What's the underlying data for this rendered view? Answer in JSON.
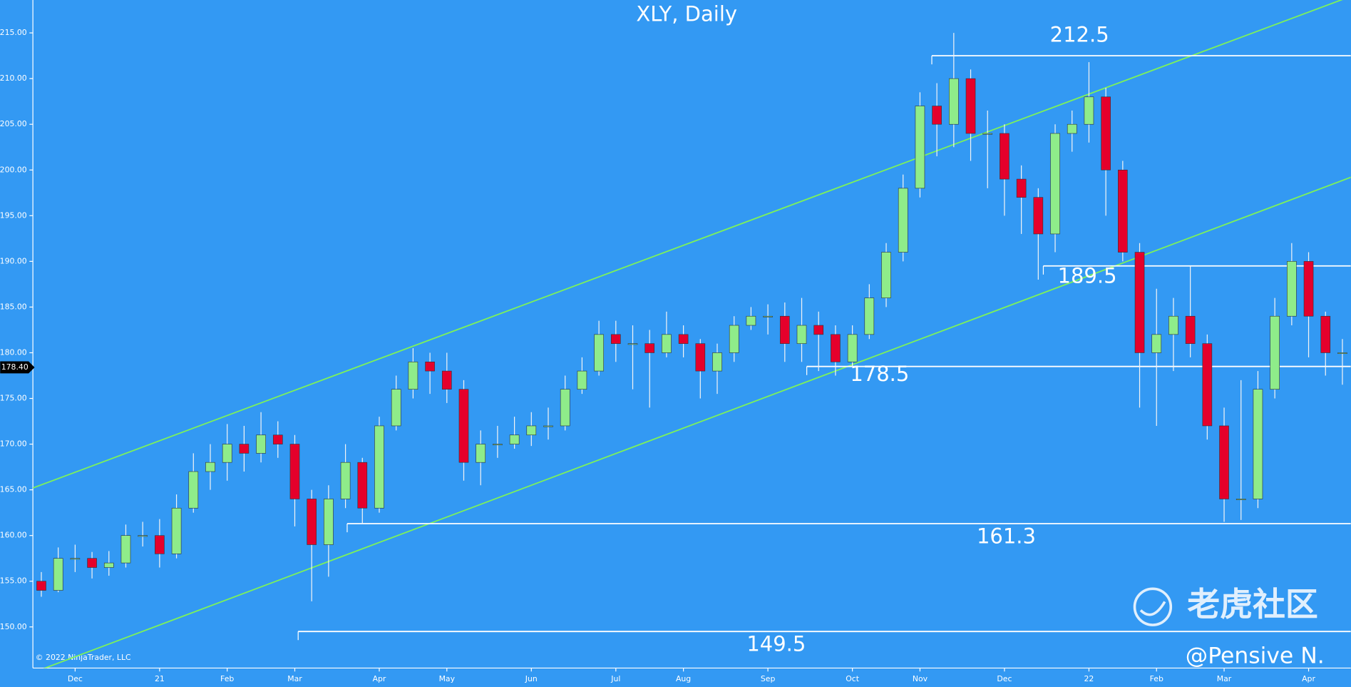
{
  "chart_data": {
    "type": "candlestick",
    "title": "XLY, Daily",
    "categories": [
      null,
      null,
      "Dec",
      null,
      null,
      null,
      null,
      "21",
      null,
      null,
      null,
      "Feb",
      null,
      null,
      null,
      "Mar",
      null,
      null,
      null,
      null,
      "Apr",
      null,
      null,
      null,
      "May",
      null,
      null,
      null,
      null,
      "Jun",
      null,
      null,
      null,
      null,
      "Jul",
      null,
      null,
      null,
      "Aug",
      null,
      null,
      null,
      null,
      "Sep",
      null,
      null,
      null,
      null,
      "Oct",
      null,
      null,
      null,
      "Nov",
      null,
      null,
      null,
      null,
      "Dec",
      null,
      null,
      null,
      null,
      "22",
      null,
      null,
      null,
      "Feb",
      null,
      null,
      null,
      "Mar",
      null,
      null,
      null,
      null,
      "Apr",
      null,
      null
    ],
    "open": [
      155,
      154,
      157.5,
      157.5,
      156.5,
      157,
      160,
      160,
      158,
      163,
      167,
      168,
      170,
      169,
      171,
      170,
      164,
      159,
      164,
      168,
      163,
      172,
      176,
      179,
      178,
      176,
      168,
      170,
      170,
      171,
      172,
      172,
      176,
      178,
      182,
      181,
      181,
      180,
      182,
      181,
      178,
      180,
      183,
      184,
      184,
      181,
      183,
      182,
      179,
      182,
      186,
      191,
      198,
      207,
      205,
      210,
      204,
      204,
      199,
      197,
      193,
      204,
      205,
      208,
      200,
      191,
      180,
      182,
      184,
      181,
      172,
      164,
      164,
      176,
      184,
      190,
      184,
      180
    ],
    "high": [
      156,
      158.7,
      159,
      158.2,
      158.3,
      161.2,
      161.5,
      161.8,
      164.5,
      169,
      170,
      172.2,
      172,
      173.5,
      172.5,
      171,
      165,
      165.5,
      170,
      168.5,
      173,
      177.5,
      180.5,
      180,
      180,
      177,
      171.5,
      172,
      173,
      173.5,
      174,
      177.5,
      179.5,
      183.5,
      183.5,
      183,
      182.5,
      184.5,
      183,
      181.5,
      181,
      184,
      185,
      185.3,
      185.5,
      186,
      184.5,
      183,
      183,
      187.5,
      192,
      199.5,
      208.5,
      209.5,
      215,
      211,
      206.5,
      205,
      200.5,
      198,
      205,
      206.5,
      211.8,
      209,
      201,
      192,
      187,
      186,
      189.5,
      182,
      174,
      177,
      178,
      186,
      192,
      191,
      184.5,
      181.5
    ],
    "low": [
      153.3,
      153.8,
      156,
      155.3,
      155.6,
      156.5,
      158.8,
      156.5,
      157.5,
      162.5,
      165,
      166,
      167,
      168,
      168.5,
      161,
      152.8,
      155.5,
      163,
      161.3,
      162.5,
      171.5,
      175,
      175.5,
      174.5,
      166,
      165.5,
      168.5,
      169.5,
      169.8,
      170.5,
      171.5,
      175.5,
      177.5,
      179,
      176,
      174,
      179.5,
      179.5,
      175,
      175.5,
      179,
      182.5,
      182,
      179,
      179,
      178,
      177.5,
      178.5,
      181.5,
      185,
      190,
      197,
      201.5,
      202.5,
      201,
      198,
      195,
      193,
      188,
      191,
      202,
      203,
      195,
      190,
      174,
      172,
      178,
      179.5,
      170.5,
      161.5,
      161.7,
      163,
      175,
      183,
      179.5,
      177.5,
      176.5
    ],
    "close": [
      154,
      157.5,
      157.5,
      156.5,
      157,
      160,
      160,
      158,
      163,
      167,
      168,
      170,
      169,
      171,
      170,
      164,
      159,
      164,
      168,
      163,
      172,
      176,
      179,
      178,
      176,
      168,
      170,
      170,
      171,
      172,
      172,
      176,
      178,
      182,
      181,
      181,
      180,
      182,
      181,
      178,
      180,
      183,
      184,
      184,
      181,
      183,
      182,
      179,
      182,
      186,
      191,
      198,
      207,
      205,
      210,
      204,
      204,
      199,
      197,
      193,
      204,
      205,
      208,
      200,
      191,
      180,
      182,
      184,
      181,
      172,
      164,
      164,
      176,
      184,
      190,
      184,
      180,
      180
    ],
    "up_color": "#8fec8a",
    "down_color": "#e5002b",
    "ylim": [
      145.5,
      218.6
    ],
    "yticks": [
      {
        "value": 150,
        "label": "150.00"
      },
      {
        "value": 155,
        "label": "155.00"
      },
      {
        "value": 160,
        "label": "160.00"
      },
      {
        "value": 165,
        "label": "165.00"
      },
      {
        "value": 170,
        "label": "170.00"
      },
      {
        "value": 175,
        "label": "175.00"
      },
      {
        "value": 180,
        "label": "180.00"
      },
      {
        "value": 185,
        "label": "185.00"
      },
      {
        "value": 190,
        "label": "190.00"
      },
      {
        "value": 195,
        "label": "195.00"
      },
      {
        "value": 200,
        "label": "200.00"
      },
      {
        "value": 205,
        "label": "205.00"
      },
      {
        "value": 210,
        "label": "210.00"
      },
      {
        "value": 215,
        "label": "215.00"
      }
    ],
    "channels": [
      {
        "start": 165.2,
        "end": 219.0,
        "color": "#7df25a"
      },
      {
        "start": 145.0,
        "end": 199.2,
        "color": "#7df25a"
      }
    ],
    "levels": [
      {
        "value": 212.5,
        "start": 53.2
      },
      {
        "value": 189.5,
        "start": 59.8
      },
      {
        "value": 178.5,
        "start": 45.8
      },
      {
        "value": 161.3,
        "start": 18.6
      },
      {
        "value": 149.5,
        "start": 15.7
      }
    ],
    "last_price": {
      "value": 178.4,
      "label": "178.40"
    },
    "copyright": "© 2022 NinjaTrader, LLC",
    "watermark": "老虎社区",
    "signature": "@Pensive N."
  }
}
